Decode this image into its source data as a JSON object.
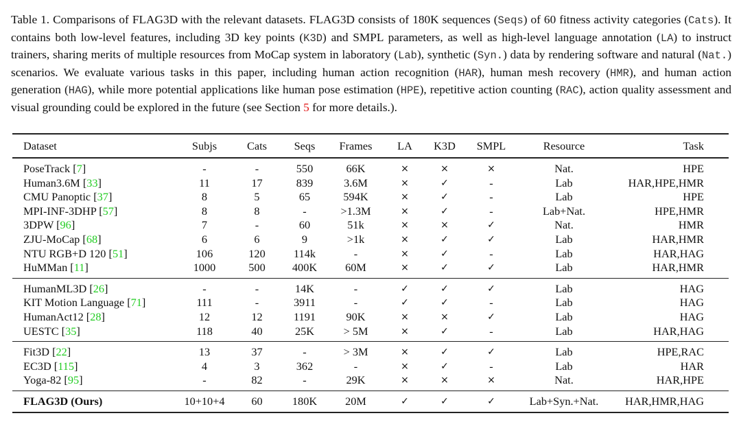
{
  "caption": [
    {
      "t": "Table 1. Comparisons of FLAG3D with the relevant datasets. FLAG3D consists of 180K sequences ("
    },
    {
      "t": "Seqs",
      "s": "mono"
    },
    {
      "t": ") of 60 fitness activity categories ("
    },
    {
      "t": "Cats",
      "s": "mono"
    },
    {
      "t": "). It contains both low-level features, including 3D key points ("
    },
    {
      "t": "K3D",
      "s": "mono"
    },
    {
      "t": ") and SMPL parameters, as well as high-level language annotation ("
    },
    {
      "t": "LA",
      "s": "mono"
    },
    {
      "t": ") to instruct trainers, sharing merits of multiple resources from MoCap system in laboratory ("
    },
    {
      "t": "Lab",
      "s": "mono"
    },
    {
      "t": "), synthetic ("
    },
    {
      "t": "Syn.",
      "s": "mono"
    },
    {
      "t": ") data by rendering software and natural ("
    },
    {
      "t": "Nat.",
      "s": "mono"
    },
    {
      "t": ") scenarios. We evaluate various tasks in this paper, including human action recognition ("
    },
    {
      "t": "HAR",
      "s": "mono"
    },
    {
      "t": "), human mesh recovery ("
    },
    {
      "t": "HMR",
      "s": "mono"
    },
    {
      "t": "), and human action generation ("
    },
    {
      "t": "HAG",
      "s": "mono"
    },
    {
      "t": "), while more potential applications like human pose estimation ("
    },
    {
      "t": "HPE",
      "s": "mono"
    },
    {
      "t": "), repetitive action counting ("
    },
    {
      "t": "RAC",
      "s": "mono"
    },
    {
      "t": "), action quality assessment and visual grounding could be explored in the future (see Section "
    },
    {
      "t": "5",
      "s": "red"
    },
    {
      "t": " for more details.)."
    }
  ],
  "colors": {
    "citation": "#22cc22",
    "section_ref": "#e01010"
  },
  "table": {
    "headers": [
      "Dataset",
      "Subjs",
      "Cats",
      "Seqs",
      "Frames",
      "LA",
      "K3D",
      "SMPL",
      "Resource",
      "Task"
    ],
    "groups": [
      [
        {
          "name": "PoseTrack",
          "ref": "7",
          "cells": [
            "-",
            "-",
            "550",
            "66K",
            "×",
            "×",
            "×",
            "Nat.",
            "HPE"
          ]
        },
        {
          "name": "Human3.6M",
          "ref": "33",
          "cells": [
            "11",
            "17",
            "839",
            "3.6M",
            "×",
            "✓",
            "-",
            "Lab",
            "HAR,HPE,HMR"
          ]
        },
        {
          "name": "CMU Panoptic",
          "ref": "37",
          "cells": [
            "8",
            "5",
            "65",
            "594K",
            "×",
            "✓",
            "-",
            "Lab",
            "HPE"
          ]
        },
        {
          "name": "MPI-INF-3DHP",
          "ref": "57",
          "cells": [
            "8",
            "8",
            "-",
            ">1.3M",
            "×",
            "✓",
            "-",
            "Lab+Nat.",
            "HPE,HMR"
          ]
        },
        {
          "name": "3DPW",
          "ref": "96",
          "cells": [
            "7",
            "-",
            "60",
            "51k",
            "×",
            "×",
            "✓",
            "Nat.",
            "HMR"
          ]
        },
        {
          "name": "ZJU-MoCap",
          "ref": "68",
          "cells": [
            "6",
            "6",
            "9",
            ">1k",
            "×",
            "✓",
            "✓",
            "Lab",
            "HAR,HMR"
          ]
        },
        {
          "name": "NTU RGB+D 120",
          "ref": "51",
          "cells": [
            "106",
            "120",
            "114k",
            "-",
            "×",
            "✓",
            "-",
            "Lab",
            "HAR,HAG"
          ]
        },
        {
          "name": "HuMMan ",
          "ref": "11",
          "cells": [
            "1000",
            "500",
            "400K",
            "60M",
            "×",
            "✓",
            "✓",
            "Lab",
            "HAR,HMR"
          ]
        }
      ],
      [
        {
          "name": "HumanML3D ",
          "ref": "26",
          "cells": [
            "-",
            "-",
            "14K",
            "-",
            "✓",
            "✓",
            "✓",
            "Lab",
            "HAG"
          ]
        },
        {
          "name": "KIT Motion Language ",
          "ref": "71",
          "cells": [
            "111",
            "-",
            "3911",
            "-",
            "✓",
            "✓",
            "-",
            "Lab",
            "HAG"
          ]
        },
        {
          "name": "HumanAct12 ",
          "ref": "28",
          "cells": [
            "12",
            "12",
            "1191",
            "90K",
            "×",
            "×",
            "✓",
            "Lab",
            "HAG"
          ]
        },
        {
          "name": "UESTC ",
          "ref": "35",
          "cells": [
            "118",
            "40",
            "25K",
            "> 5M",
            "×",
            "✓",
            "-",
            "Lab",
            "HAR,HAG"
          ]
        }
      ],
      [
        {
          "name": "Fit3D ",
          "ref": "22",
          "cells": [
            "13",
            "37",
            "-",
            "> 3M",
            "×",
            "✓",
            "✓",
            "Lab",
            "HPE,RAC"
          ]
        },
        {
          "name": "EC3D ",
          "ref": "115",
          "cells": [
            "4",
            "3",
            "362",
            "-",
            "×",
            "✓",
            "-",
            "Lab",
            "HAR"
          ]
        },
        {
          "name": "Yoga-82 ",
          "ref": "95",
          "cells": [
            "-",
            "82",
            "-",
            "29K",
            "×",
            "×",
            "×",
            "Nat.",
            "HAR,HPE"
          ]
        }
      ],
      [
        {
          "name": "FLAG3D (Ours)",
          "bold": true,
          "cells": [
            "10+10+4",
            "60",
            "180K",
            "20M",
            "✓",
            "✓",
            "✓",
            "Lab+Syn.+Nat.",
            "HAR,HMR,HAG"
          ]
        }
      ]
    ]
  }
}
